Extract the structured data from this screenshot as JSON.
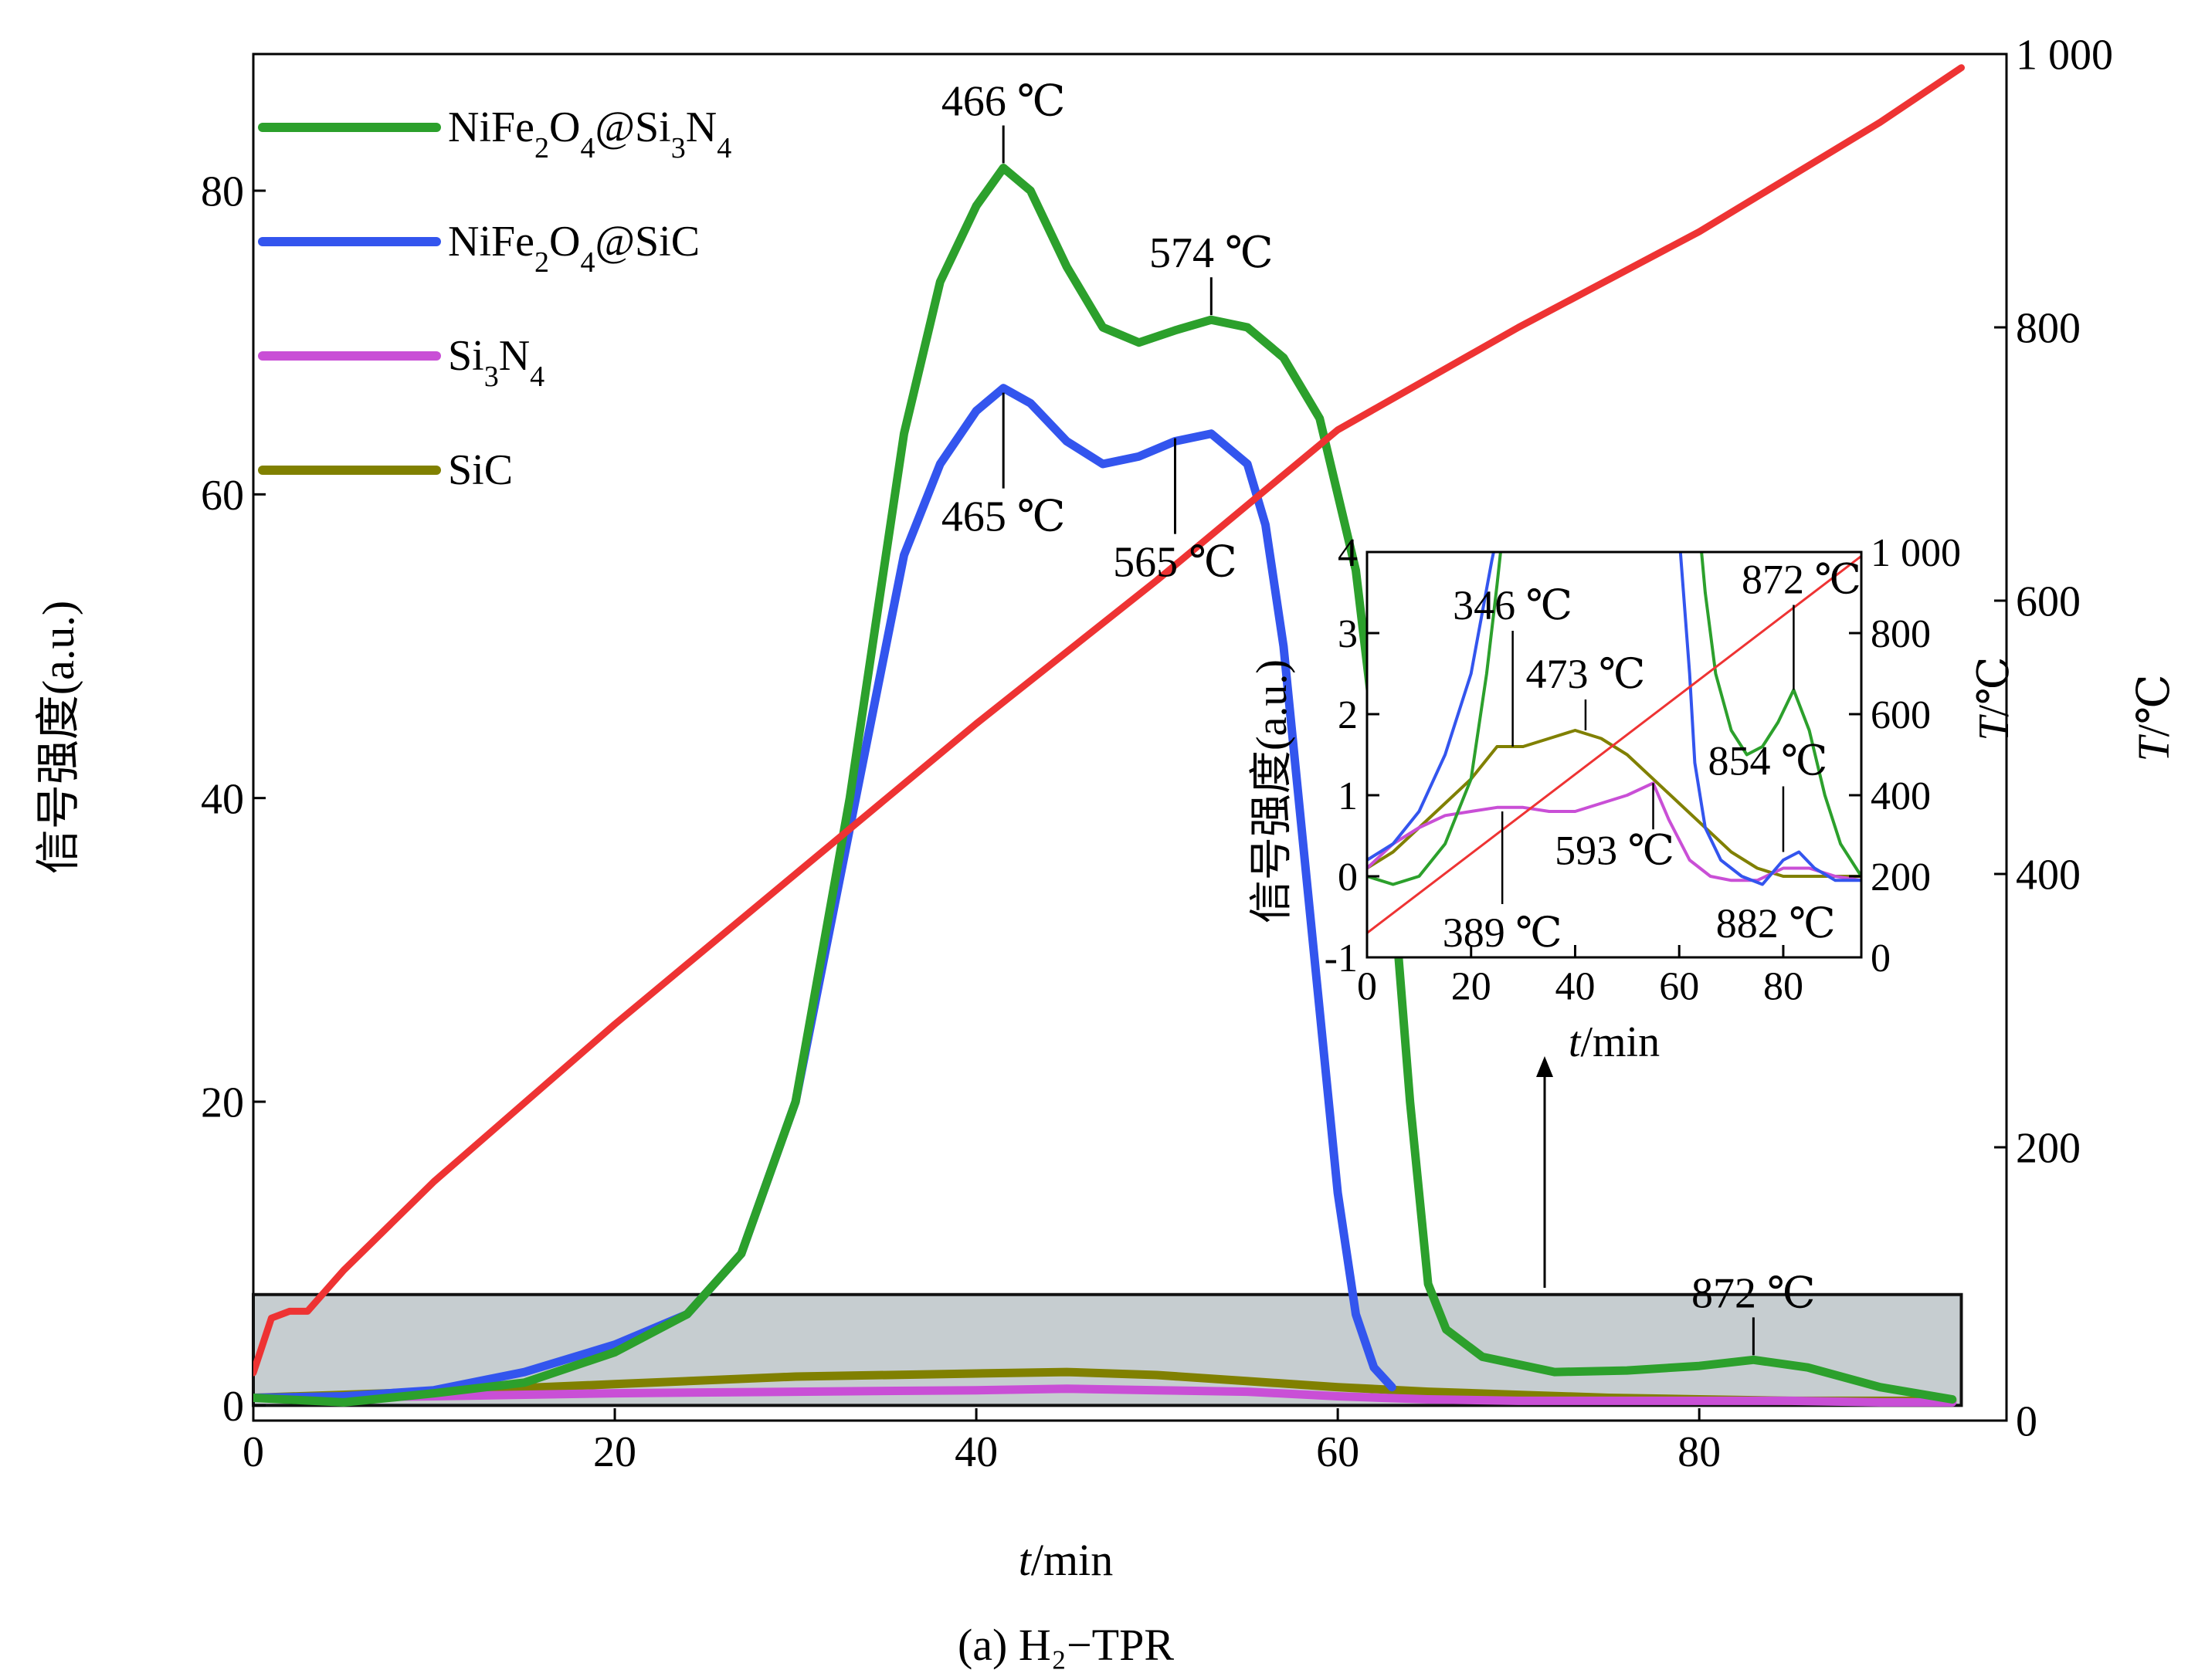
{
  "caption": "(a) H₂−TPR",
  "chart_data": [
    {
      "type": "line",
      "xlabel_italic": "t",
      "xlabel_unit": "/min",
      "ylabel": "信号强度(a.u.)",
      "y2label_italic": "T",
      "y2label_unit": "/℃",
      "xlim": [
        0,
        97
      ],
      "ylim": [
        -1,
        89
      ],
      "y2lim": [
        0,
        1000
      ],
      "xticks": [
        0,
        20,
        40,
        60,
        80
      ],
      "yticks": [
        0,
        20,
        40,
        60,
        80
      ],
      "y2ticks": [
        0,
        200,
        400,
        600,
        800,
        1000
      ],
      "y2ticklabels": [
        "0",
        "200",
        "400",
        "600",
        "800",
        "1 000"
      ],
      "series": [
        {
          "name": "NiFe2O4@Si3N4",
          "legend_parts": [
            [
              "NiFe",
              ""
            ],
            [
              "2",
              "sub"
            ],
            [
              "O",
              ""
            ],
            [
              "4",
              "sub"
            ],
            [
              "@Si",
              ""
            ],
            [
              "3",
              "sub"
            ],
            [
              "N",
              ""
            ],
            [
              "4",
              "sub"
            ]
          ],
          "color": "#2ca02c",
          "x": [
            0,
            5,
            10,
            15,
            20,
            24,
            27,
            30,
            33,
            36,
            38,
            40,
            41.5,
            43,
            45,
            47,
            49,
            51,
            53,
            55,
            57,
            59,
            61,
            63,
            64,
            65,
            66,
            68,
            72,
            76,
            80,
            83,
            86,
            90,
            94
          ],
          "y": [
            0.5,
            0.2,
            0.8,
            1.5,
            3.5,
            6,
            10,
            20,
            40,
            64,
            74,
            79,
            81.5,
            80,
            75,
            71,
            70,
            70.8,
            71.5,
            71,
            69,
            65,
            55,
            35,
            20,
            8,
            5,
            3.2,
            2.2,
            2.3,
            2.6,
            3.0,
            2.5,
            1.2,
            0.4
          ]
        },
        {
          "name": "NiFe2O4@SiC",
          "legend_parts": [
            [
              "NiFe",
              ""
            ],
            [
              "2",
              "sub"
            ],
            [
              "O",
              ""
            ],
            [
              "4",
              "sub"
            ],
            [
              "@SiC",
              ""
            ]
          ],
          "color": "#3355ee",
          "x": [
            0,
            5,
            10,
            15,
            20,
            24,
            27,
            30,
            33,
            36,
            38,
            40,
            41.5,
            43,
            45,
            47,
            49,
            51,
            53,
            55,
            56,
            57,
            58,
            59,
            60,
            61,
            62,
            63
          ],
          "y": [
            0.5,
            0.6,
            1.0,
            2.2,
            4,
            6,
            10,
            20,
            38,
            56,
            62,
            65.5,
            67,
            66,
            63.5,
            62,
            62.5,
            63.5,
            64,
            62,
            58,
            50,
            38,
            26,
            14,
            6,
            2.5,
            1.2
          ]
        },
        {
          "name": "Si3N4",
          "legend_parts": [
            [
              "Si",
              ""
            ],
            [
              "3",
              "sub"
            ],
            [
              "N",
              ""
            ],
            [
              "4",
              "sub"
            ]
          ],
          "color": "#c94fd6",
          "x": [
            0,
            10,
            20,
            30,
            40,
            45,
            50,
            55,
            60,
            65,
            70,
            75,
            80,
            85,
            90,
            94
          ],
          "y": [
            0.5,
            0.6,
            0.8,
            0.9,
            1.0,
            1.1,
            1.0,
            0.9,
            0.6,
            0.4,
            0.3,
            0.3,
            0.3,
            0.3,
            0.2,
            0.2
          ]
        },
        {
          "name": "SiC",
          "legend_parts": [
            [
              "SiC",
              ""
            ]
          ],
          "color": "#808000",
          "x": [
            0,
            10,
            20,
            30,
            40,
            45,
            50,
            55,
            60,
            65,
            70,
            75,
            80,
            85,
            90,
            94
          ],
          "y": [
            0.5,
            0.9,
            1.4,
            1.9,
            2.1,
            2.2,
            2.0,
            1.6,
            1.2,
            0.9,
            0.7,
            0.5,
            0.4,
            0.3,
            0.3,
            0.3
          ]
        },
        {
          "name": "T",
          "color": "#ee3333",
          "axis": "right",
          "x": [
            0,
            1,
            2,
            3,
            4,
            5,
            10,
            20,
            30,
            40,
            50,
            60,
            70,
            80,
            90,
            94.5
          ],
          "y2": [
            35,
            75,
            80,
            80,
            95,
            110,
            175,
            290,
            400,
            510,
            615,
            725,
            800,
            870,
            950,
            990
          ]
        }
      ],
      "annotations": [
        {
          "text": "466 ℃",
          "x": 41.5,
          "y": 81.5,
          "pos": "above"
        },
        {
          "text": "574 ℃",
          "x": 53,
          "y": 71.5,
          "pos": "above"
        },
        {
          "text": "465 ℃",
          "x": 41.5,
          "y": 67,
          "pos": "below"
        },
        {
          "text": "565 ℃",
          "x": 51,
          "y": 64,
          "pos": "below"
        },
        {
          "text": "872 ℃",
          "x": 83,
          "y": 3,
          "pos": "above"
        }
      ],
      "highlight_box": {
        "x": [
          0,
          94.5
        ],
        "y": [
          0,
          7.3
        ]
      }
    },
    {
      "type": "line",
      "inset": true,
      "xlabel_italic": "t",
      "xlabel_unit": "/min",
      "ylabel": "信号强度(a.u.)",
      "y2label_italic": "T",
      "y2label_unit": "/℃",
      "xlim": [
        0,
        95
      ],
      "ylim": [
        -1,
        4
      ],
      "y2lim": [
        0,
        1000
      ],
      "xticks": [
        0,
        20,
        40,
        60,
        80
      ],
      "yticks": [
        -1,
        0,
        1,
        2,
        3,
        4
      ],
      "y2ticks": [
        0,
        200,
        400,
        600,
        800,
        1000
      ],
      "y2ticklabels": [
        "0",
        "200",
        "400",
        "600",
        "800",
        "1 000"
      ],
      "series": [
        {
          "name": "NiFe2O4@Si3N4",
          "color": "#2ca02c",
          "x": [
            0,
            5,
            10,
            15,
            20,
            23,
            25,
            26,
            64,
            65,
            67,
            70,
            73,
            76,
            79,
            82,
            85,
            88,
            91,
            95
          ],
          "y": [
            0.0,
            -0.1,
            0.0,
            0.4,
            1.2,
            2.5,
            3.6,
            4.2,
            4.2,
            3.5,
            2.5,
            1.8,
            1.5,
            1.6,
            1.9,
            2.3,
            1.8,
            1.0,
            0.4,
            0.0
          ]
        },
        {
          "name": "NiFe2O4@SiC",
          "color": "#3355ee",
          "x": [
            0,
            5,
            10,
            15,
            20,
            22,
            24,
            25,
            60,
            62,
            63,
            65,
            68,
            72,
            76,
            80,
            83,
            86,
            90,
            95
          ],
          "y": [
            0.2,
            0.4,
            0.8,
            1.5,
            2.5,
            3.2,
            3.9,
            4.2,
            4.2,
            2.5,
            1.4,
            0.6,
            0.2,
            0.0,
            -0.1,
            0.2,
            0.3,
            0.1,
            -0.05,
            -0.05
          ]
        },
        {
          "name": "Si3N4",
          "color": "#c94fd6",
          "x": [
            0,
            5,
            10,
            15,
            20,
            25,
            30,
            35,
            40,
            45,
            50,
            55,
            58,
            62,
            66,
            70,
            75,
            80,
            85,
            90,
            95
          ],
          "y": [
            0.1,
            0.4,
            0.6,
            0.75,
            0.8,
            0.85,
            0.85,
            0.8,
            0.8,
            0.9,
            1.0,
            1.15,
            0.7,
            0.2,
            0.0,
            -0.05,
            -0.05,
            0.1,
            0.1,
            0.0,
            -0.05
          ]
        },
        {
          "name": "SiC",
          "color": "#808000",
          "x": [
            0,
            5,
            10,
            15,
            20,
            25,
            30,
            35,
            40,
            45,
            50,
            55,
            60,
            65,
            70,
            75,
            80,
            85,
            90,
            95
          ],
          "y": [
            0.1,
            0.3,
            0.6,
            0.9,
            1.2,
            1.6,
            1.6,
            1.7,
            1.8,
            1.7,
            1.5,
            1.2,
            0.9,
            0.6,
            0.3,
            0.1,
            0.0,
            0.0,
            0.0,
            0.0
          ]
        },
        {
          "name": "T",
          "color": "#ee3333",
          "axis": "right",
          "x": [
            0,
            95
          ],
          "y2": [
            60,
            990
          ]
        }
      ],
      "annotations": [
        {
          "text": "346 ℃",
          "x": 28,
          "y": 1.6
        },
        {
          "text": "473 ℃",
          "x": 42,
          "y": 1.8
        },
        {
          "text": "389 ℃",
          "x": 26,
          "y": 0.8
        },
        {
          "text": "593 ℃",
          "x": 55,
          "y": 1.15
        },
        {
          "text": "872 ℃",
          "x": 82,
          "y": 2.3
        },
        {
          "text": "854 ℃",
          "x": 80,
          "y": 0.3
        },
        {
          "text": "882 ℃",
          "x": 83,
          "y": 0.2
        }
      ]
    }
  ]
}
